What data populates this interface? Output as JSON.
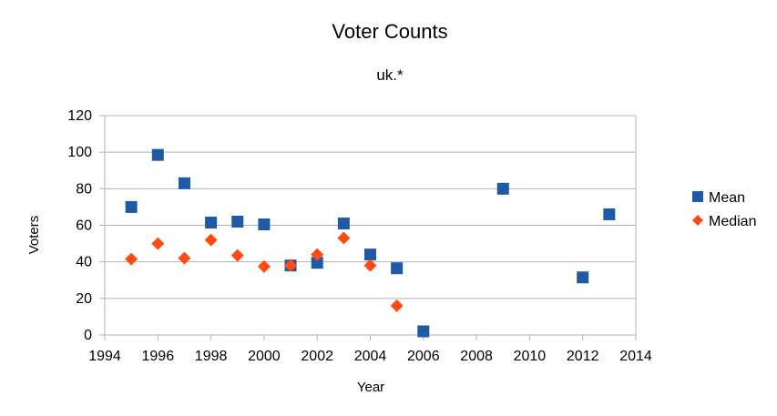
{
  "chart_data": {
    "type": "scatter",
    "title": "Voter Counts",
    "subtitle": "uk.*",
    "xlabel": "Year",
    "ylabel": "Voters",
    "xlim": [
      1994,
      2014
    ],
    "ylim": [
      0,
      120
    ],
    "x_ticks": [
      1994,
      1996,
      1998,
      2000,
      2002,
      2004,
      2006,
      2008,
      2010,
      2012,
      2014
    ],
    "y_ticks": [
      0,
      20,
      40,
      60,
      80,
      100,
      120
    ],
    "grid": "horizontal",
    "legend_position": "right",
    "series": [
      {
        "name": "Mean",
        "color": "#1f5aa6",
        "marker": "square",
        "points": [
          {
            "x": 1995,
            "y": 70
          },
          {
            "x": 1996,
            "y": 98.5
          },
          {
            "x": 1997,
            "y": 83
          },
          {
            "x": 1998,
            "y": 61.5
          },
          {
            "x": 1999,
            "y": 62
          },
          {
            "x": 2000,
            "y": 60.5
          },
          {
            "x": 2001,
            "y": 38
          },
          {
            "x": 2002,
            "y": 39.5
          },
          {
            "x": 2003,
            "y": 61
          },
          {
            "x": 2004,
            "y": 44
          },
          {
            "x": 2005,
            "y": 36.5
          },
          {
            "x": 2006,
            "y": 2
          },
          {
            "x": 2009,
            "y": 80
          },
          {
            "x": 2012,
            "y": 31.5
          },
          {
            "x": 2013,
            "y": 66
          }
        ]
      },
      {
        "name": "Median",
        "color": "#ff4a12",
        "marker": "diamond",
        "points": [
          {
            "x": 1995,
            "y": 41.5
          },
          {
            "x": 1996,
            "y": 50
          },
          {
            "x": 1997,
            "y": 42
          },
          {
            "x": 1998,
            "y": 52
          },
          {
            "x": 1999,
            "y": 43.5
          },
          {
            "x": 2000,
            "y": 37.5
          },
          {
            "x": 2001,
            "y": 38
          },
          {
            "x": 2002,
            "y": 44
          },
          {
            "x": 2003,
            "y": 53
          },
          {
            "x": 2004,
            "y": 38
          },
          {
            "x": 2005,
            "y": 16
          }
        ]
      }
    ]
  }
}
